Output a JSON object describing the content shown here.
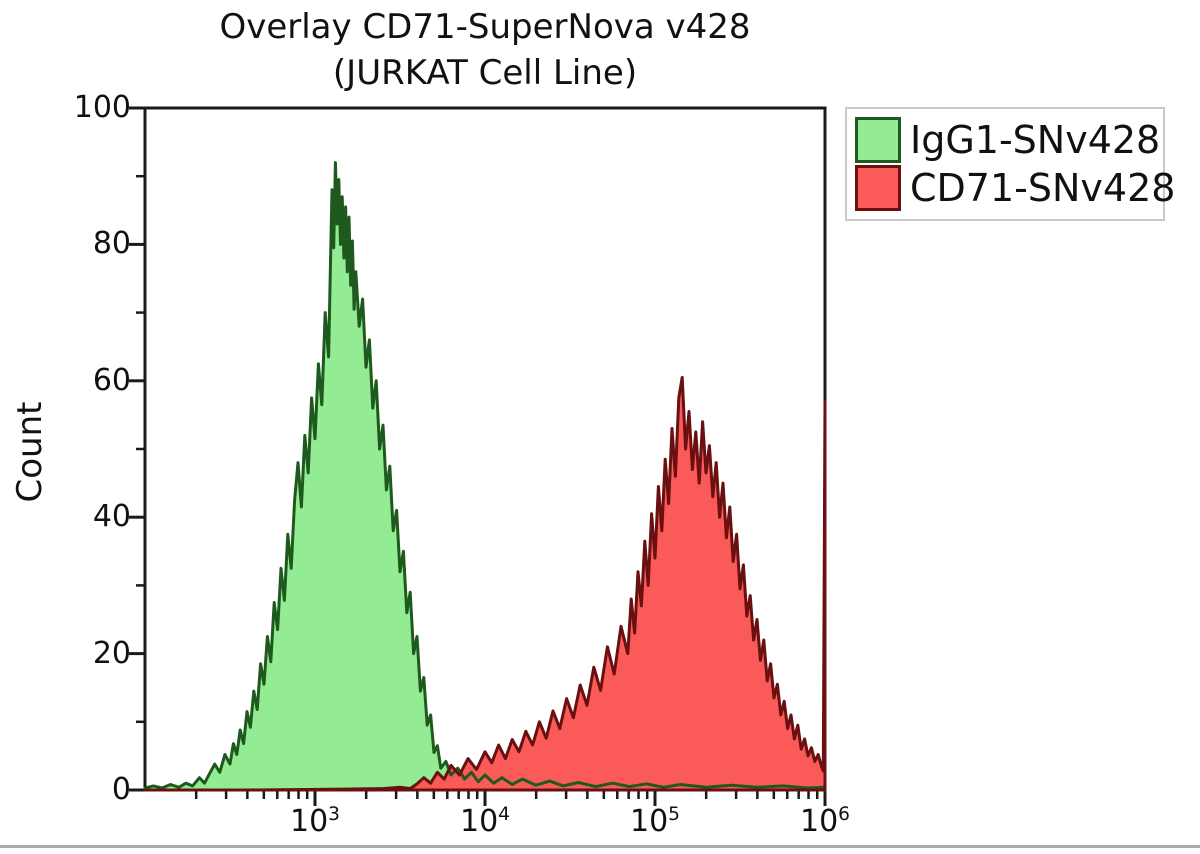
{
  "chart_data": {
    "type": "area",
    "title": "Overlay CD71-SuperNova v428",
    "subtitle": "(JURKAT Cell Line)",
    "xlabel": "",
    "ylabel": "Count",
    "x_scale": "log10",
    "x_log_range": [
      2,
      6
    ],
    "y_range": [
      0,
      100
    ],
    "grid": false,
    "legend_position": "top-right",
    "y_major_ticks": [
      0,
      20,
      40,
      60,
      80,
      100
    ],
    "y_minor_ticks": [
      10,
      30,
      50,
      70,
      90
    ],
    "x_tick_base": "10",
    "x_major_ticks": [
      {
        "exp": "3"
      },
      {
        "exp": "4"
      },
      {
        "exp": "5"
      },
      {
        "exp": "6"
      }
    ],
    "x_minor_multiples": [
      2,
      3,
      4,
      5,
      6,
      7,
      8,
      9
    ],
    "frame_color": "#1a1a1a",
    "series": [
      {
        "name": "IgG1-SNv428",
        "fill": "#93EC93",
        "stroke": "#1E5A1E",
        "peak_log_x": 3.12,
        "peak_count": 92,
        "points": [
          [
            2.0,
            0.3
          ],
          [
            2.05,
            0.6
          ],
          [
            2.1,
            0.3
          ],
          [
            2.15,
            0.8
          ],
          [
            2.2,
            0.4
          ],
          [
            2.24,
            1.0
          ],
          [
            2.28,
            0.6
          ],
          [
            2.32,
            1.8
          ],
          [
            2.35,
            1.0
          ],
          [
            2.38,
            2.4
          ],
          [
            2.41,
            3.8
          ],
          [
            2.44,
            2.6
          ],
          [
            2.47,
            5.2
          ],
          [
            2.5,
            3.8
          ],
          [
            2.52,
            6.8
          ],
          [
            2.54,
            5.2
          ],
          [
            2.56,
            8.8
          ],
          [
            2.58,
            6.8
          ],
          [
            2.6,
            11.5
          ],
          [
            2.62,
            9.2
          ],
          [
            2.64,
            14.5
          ],
          [
            2.66,
            11.8
          ],
          [
            2.68,
            18.5
          ],
          [
            2.7,
            15.5
          ],
          [
            2.72,
            22.5
          ],
          [
            2.74,
            18.8
          ],
          [
            2.76,
            27.5
          ],
          [
            2.78,
            23.5
          ],
          [
            2.8,
            32.5
          ],
          [
            2.82,
            27.8
          ],
          [
            2.84,
            37.5
          ],
          [
            2.86,
            32.5
          ],
          [
            2.88,
            42.5
          ],
          [
            2.9,
            48.0
          ],
          [
            2.92,
            41.5
          ],
          [
            2.94,
            52.0
          ],
          [
            2.96,
            46.5
          ],
          [
            2.98,
            57.5
          ],
          [
            3.0,
            51.5
          ],
          [
            3.02,
            62.5
          ],
          [
            3.04,
            56.5
          ],
          [
            3.06,
            70.0
          ],
          [
            3.08,
            63.5
          ],
          [
            3.09,
            76.0
          ],
          [
            3.1,
            88.0
          ],
          [
            3.11,
            79.5
          ],
          [
            3.12,
            92.0
          ],
          [
            3.13,
            83.0
          ],
          [
            3.14,
            89.5
          ],
          [
            3.15,
            80.0
          ],
          [
            3.16,
            87.0
          ],
          [
            3.17,
            78.0
          ],
          [
            3.18,
            85.5
          ],
          [
            3.19,
            76.0
          ],
          [
            3.2,
            84.0
          ],
          [
            3.21,
            74.0
          ],
          [
            3.22,
            80.5
          ],
          [
            3.23,
            70.5
          ],
          [
            3.24,
            76.0
          ],
          [
            3.26,
            68.0
          ],
          [
            3.28,
            72.0
          ],
          [
            3.3,
            62.0
          ],
          [
            3.32,
            66.0
          ],
          [
            3.34,
            56.0
          ],
          [
            3.36,
            60.0
          ],
          [
            3.38,
            50.0
          ],
          [
            3.4,
            53.5
          ],
          [
            3.42,
            44.0
          ],
          [
            3.44,
            47.5
          ],
          [
            3.46,
            38.0
          ],
          [
            3.48,
            41.0
          ],
          [
            3.5,
            32.0
          ],
          [
            3.52,
            35.0
          ],
          [
            3.54,
            26.0
          ],
          [
            3.56,
            29.0
          ],
          [
            3.58,
            20.0
          ],
          [
            3.6,
            22.5
          ],
          [
            3.62,
            14.5
          ],
          [
            3.64,
            16.5
          ],
          [
            3.66,
            9.5
          ],
          [
            3.68,
            11.0
          ],
          [
            3.7,
            5.5
          ],
          [
            3.72,
            6.5
          ],
          [
            3.74,
            3.2
          ],
          [
            3.77,
            4.2
          ],
          [
            3.8,
            2.2
          ],
          [
            3.84,
            3.2
          ],
          [
            3.88,
            1.6
          ],
          [
            3.92,
            2.6
          ],
          [
            3.96,
            1.2
          ],
          [
            4.0,
            2.2
          ],
          [
            4.05,
            1.0
          ],
          [
            4.1,
            1.8
          ],
          [
            4.16,
            0.8
          ],
          [
            4.22,
            1.6
          ],
          [
            4.3,
            0.7
          ],
          [
            4.38,
            1.3
          ],
          [
            4.46,
            0.6
          ],
          [
            4.55,
            1.1
          ],
          [
            4.65,
            0.5
          ],
          [
            4.75,
            1.0
          ],
          [
            4.85,
            0.5
          ],
          [
            4.95,
            0.9
          ],
          [
            5.05,
            0.4
          ],
          [
            5.15,
            0.8
          ],
          [
            5.3,
            0.4
          ],
          [
            5.45,
            0.7
          ],
          [
            5.6,
            0.4
          ],
          [
            5.75,
            0.6
          ],
          [
            5.9,
            0.3
          ],
          [
            6.0,
            0.4
          ]
        ]
      },
      {
        "name": "CD71-SNv428",
        "fill": "#FA5B59",
        "stroke": "#6B1011",
        "peak_log_x": 5.16,
        "peak_count": 60,
        "points": [
          [
            2.0,
            0.0
          ],
          [
            2.6,
            0.0
          ],
          [
            3.1,
            0.1
          ],
          [
            3.4,
            0.2
          ],
          [
            3.5,
            0.4
          ],
          [
            3.56,
            0.2
          ],
          [
            3.6,
            0.9
          ],
          [
            3.64,
            1.8
          ],
          [
            3.68,
            1.0
          ],
          [
            3.72,
            2.6
          ],
          [
            3.76,
            1.6
          ],
          [
            3.8,
            3.6
          ],
          [
            3.85,
            2.2
          ],
          [
            3.9,
            4.6
          ],
          [
            3.95,
            3.0
          ],
          [
            4.0,
            5.6
          ],
          [
            4.04,
            4.0
          ],
          [
            4.08,
            6.6
          ],
          [
            4.12,
            4.6
          ],
          [
            4.16,
            7.4
          ],
          [
            4.2,
            5.6
          ],
          [
            4.24,
            8.6
          ],
          [
            4.28,
            6.6
          ],
          [
            4.32,
            10.0
          ],
          [
            4.36,
            7.6
          ],
          [
            4.4,
            11.6
          ],
          [
            4.44,
            9.0
          ],
          [
            4.48,
            13.4
          ],
          [
            4.52,
            10.6
          ],
          [
            4.56,
            15.4
          ],
          [
            4.6,
            12.4
          ],
          [
            4.64,
            18.0
          ],
          [
            4.68,
            14.6
          ],
          [
            4.72,
            21.0
          ],
          [
            4.76,
            17.0
          ],
          [
            4.8,
            24.0
          ],
          [
            4.84,
            20.0
          ],
          [
            4.86,
            28.0
          ],
          [
            4.88,
            23.0
          ],
          [
            4.9,
            32.0
          ],
          [
            4.92,
            27.0
          ],
          [
            4.94,
            36.5
          ],
          [
            4.96,
            30.0
          ],
          [
            4.98,
            40.5
          ],
          [
            5.0,
            34.0
          ],
          [
            5.02,
            44.5
          ],
          [
            5.04,
            38.0
          ],
          [
            5.06,
            48.5
          ],
          [
            5.08,
            42.0
          ],
          [
            5.1,
            53.0
          ],
          [
            5.12,
            46.0
          ],
          [
            5.14,
            57.5
          ],
          [
            5.16,
            60.5
          ],
          [
            5.18,
            50.0
          ],
          [
            5.2,
            55.5
          ],
          [
            5.22,
            47.0
          ],
          [
            5.24,
            52.5
          ],
          [
            5.26,
            45.0
          ],
          [
            5.28,
            54.0
          ],
          [
            5.3,
            46.5
          ],
          [
            5.32,
            50.5
          ],
          [
            5.34,
            43.0
          ],
          [
            5.36,
            48.0
          ],
          [
            5.38,
            40.0
          ],
          [
            5.4,
            45.0
          ],
          [
            5.42,
            37.0
          ],
          [
            5.44,
            41.5
          ],
          [
            5.46,
            33.5
          ],
          [
            5.48,
            37.5
          ],
          [
            5.5,
            29.5
          ],
          [
            5.52,
            33.0
          ],
          [
            5.54,
            25.5
          ],
          [
            5.56,
            28.5
          ],
          [
            5.58,
            22.0
          ],
          [
            5.6,
            25.0
          ],
          [
            5.62,
            19.0
          ],
          [
            5.64,
            22.0
          ],
          [
            5.66,
            16.0
          ],
          [
            5.68,
            18.5
          ],
          [
            5.7,
            13.5
          ],
          [
            5.72,
            15.5
          ],
          [
            5.74,
            11.0
          ],
          [
            5.76,
            13.0
          ],
          [
            5.78,
            9.0
          ],
          [
            5.8,
            11.0
          ],
          [
            5.82,
            7.5
          ],
          [
            5.84,
            9.5
          ],
          [
            5.86,
            6.0
          ],
          [
            5.88,
            7.5
          ],
          [
            5.9,
            5.0
          ],
          [
            5.92,
            6.2
          ],
          [
            5.94,
            4.2
          ],
          [
            5.96,
            5.2
          ],
          [
            5.98,
            3.4
          ],
          [
            5.99,
            2.8
          ],
          [
            6.0,
            57.0
          ]
        ]
      }
    ]
  },
  "legend": {
    "entries": [
      {
        "label": "IgG1-SNv428"
      },
      {
        "label": "CD71-SNv428"
      }
    ],
    "border_color": "#C9C9C9"
  },
  "page": {
    "background": "#FFFFFF",
    "bottom_divider_color": "#ABABAB"
  }
}
